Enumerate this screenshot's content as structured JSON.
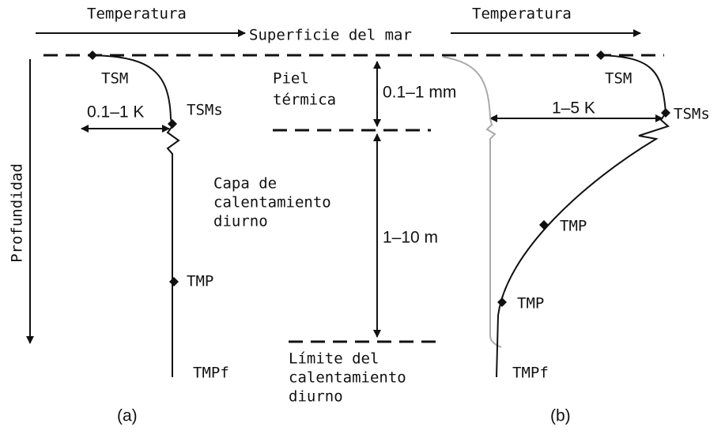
{
  "header": {
    "temperature_left": "Temperatura",
    "temperature_right": "Temperatura",
    "sea_surface": "Superficie del mar",
    "depth": "Profundidad"
  },
  "panel_a": {
    "sst": "TSM",
    "delta": "0.1–1 K",
    "ssts": "TSMs",
    "tmp": "TMP",
    "tmpf": "TMPf",
    "label": "(a)"
  },
  "middle": {
    "skin_layer": [
      "Piel",
      "térmica"
    ],
    "skin_depth": "0.1–1 mm",
    "warm_layer": [
      "Capa de",
      "calentamiento",
      "diurno"
    ],
    "warm_depth": "1–10 m",
    "warm_limit": [
      "Límite del",
      "calentamiento",
      "diurno"
    ]
  },
  "panel_b": {
    "sst": "TSM",
    "delta": "1–5 K",
    "ssts": "TSMs",
    "tmp_upper": "TMP",
    "tmp_lower": "TMP",
    "tmpf": "TMPf",
    "label": "(b)"
  }
}
